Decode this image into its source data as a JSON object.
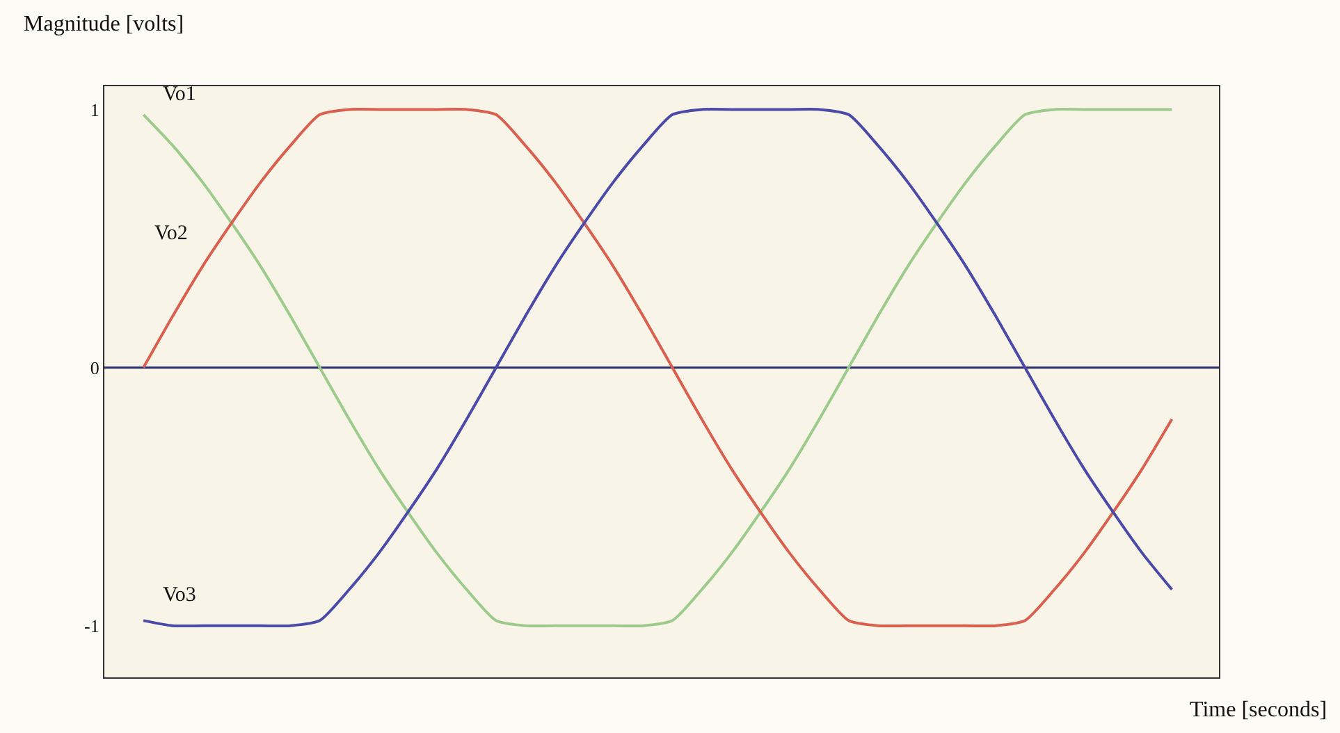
{
  "chart_data": {
    "type": "line",
    "xlabel": "Time [seconds]",
    "ylabel": "Magnitude [volts]",
    "categories": [
      null,
      null,
      null,
      null,
      null,
      null,
      null,
      null,
      null,
      null,
      null,
      null,
      null,
      null,
      null,
      null,
      null,
      null,
      null,
      null,
      null,
      null,
      null,
      null,
      null,
      null,
      null,
      null,
      null,
      null,
      null,
      null,
      null,
      null,
      null,
      null
    ],
    "series": [
      {
        "name": "Vo1",
        "color": "#9ccb8c",
        "values": [
          0.98,
          0.86,
          0.72,
          0.56,
          0.39,
          0.2,
          0,
          -0.2,
          -0.39,
          -0.56,
          -0.72,
          -0.86,
          -0.98,
          -1,
          -1,
          -1,
          -1,
          -1,
          -0.98,
          -0.86,
          -0.72,
          -0.56,
          -0.39,
          -0.2,
          0,
          0.2,
          0.39,
          0.56,
          0.72,
          0.86,
          0.98,
          1,
          1,
          1,
          1,
          1
        ]
      },
      {
        "name": "Vo2",
        "color": "#d9604f",
        "values": [
          0,
          0.2,
          0.39,
          0.56,
          0.72,
          0.86,
          0.98,
          1,
          1,
          1,
          1,
          1,
          0.98,
          0.86,
          0.72,
          0.56,
          0.39,
          0.2,
          0,
          -0.2,
          -0.39,
          -0.56,
          -0.72,
          -0.86,
          -0.98,
          -1,
          -1,
          -1,
          -1,
          -1,
          -0.98,
          -0.86,
          -0.72,
          -0.56,
          -0.39,
          -0.2
        ]
      },
      {
        "name": "Vo3",
        "color": "#4a4aa8",
        "values": [
          -0.98,
          -1,
          -1,
          -1,
          -1,
          -1,
          -0.98,
          -0.86,
          -0.72,
          -0.56,
          -0.39,
          -0.2,
          0,
          0.2,
          0.39,
          0.56,
          0.72,
          0.86,
          0.98,
          1,
          1,
          1,
          1,
          1,
          0.98,
          0.86,
          0.72,
          0.56,
          0.39,
          0.2,
          0,
          -0.2,
          -0.39,
          -0.56,
          -0.72,
          -0.86
        ]
      }
    ],
    "ylim": [
      -1.2,
      1.09
    ],
    "yticks": [
      -1,
      0,
      1
    ],
    "grid": false,
    "legend": false,
    "marker": "none",
    "line_style": "solid",
    "ref_lines": [
      {
        "axis": "y",
        "value": 0,
        "color": "#2a2f6e"
      }
    ]
  }
}
